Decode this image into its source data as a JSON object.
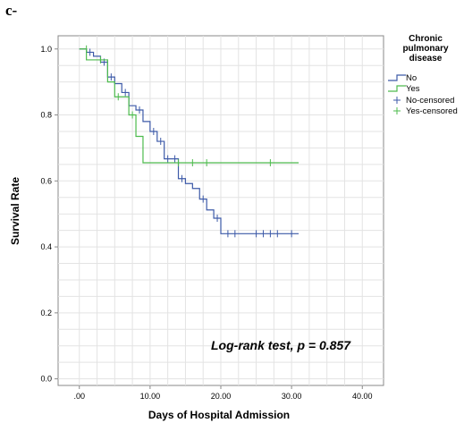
{
  "panel_label": "c-",
  "annotation": "Log-rank test, p = 0.857",
  "colors": {
    "no": "#3d5aa8",
    "yes": "#4dbb4d",
    "grid": "#e3e3e3",
    "axis": "#888888"
  },
  "chart_data": {
    "type": "line",
    "subtype": "kaplan-meier step",
    "xlabel": "Days of Hospital Admission",
    "ylabel": "Survival Rate",
    "xlim": [
      -3,
      43
    ],
    "ylim": [
      -0.02,
      1.04
    ],
    "x_ticks": [
      0,
      10,
      20,
      30,
      40
    ],
    "x_tick_labels": [
      ".00",
      "10.00",
      "20.00",
      "30.00",
      "40.00"
    ],
    "y_ticks": [
      0,
      0.2,
      0.4,
      0.6,
      0.8,
      1.0
    ],
    "y_tick_labels": [
      "0.0",
      "0.2",
      "0.4",
      "0.6",
      "0.8",
      "1.0"
    ],
    "grid": true,
    "legend": {
      "title_lines": [
        "Chronic",
        "pulmonary",
        "disease"
      ],
      "position": "right",
      "entries": [
        "No",
        "Yes",
        "No-censored",
        "Yes-censored"
      ]
    },
    "series": [
      {
        "name": "No",
        "steps": [
          [
            0,
            1.0
          ],
          [
            1,
            0.99
          ],
          [
            2,
            0.978
          ],
          [
            3,
            0.96
          ],
          [
            4,
            0.915
          ],
          [
            5,
            0.895
          ],
          [
            6,
            0.868
          ],
          [
            7,
            0.828
          ],
          [
            8,
            0.815
          ],
          [
            9,
            0.78
          ],
          [
            10,
            0.75
          ],
          [
            11,
            0.72
          ],
          [
            12,
            0.667
          ],
          [
            14,
            0.607
          ],
          [
            15,
            0.592
          ],
          [
            16,
            0.577
          ],
          [
            17,
            0.545
          ],
          [
            18,
            0.512
          ],
          [
            19,
            0.487
          ],
          [
            20,
            0.44
          ],
          [
            31,
            0.44
          ]
        ],
        "censored": [
          [
            1.5,
            0.99
          ],
          [
            3.5,
            0.96
          ],
          [
            4.5,
            0.915
          ],
          [
            6.5,
            0.868
          ],
          [
            8.5,
            0.815
          ],
          [
            10.5,
            0.75
          ],
          [
            11.5,
            0.72
          ],
          [
            12.5,
            0.667
          ],
          [
            13.5,
            0.667
          ],
          [
            14.5,
            0.607
          ],
          [
            17.5,
            0.545
          ],
          [
            19.5,
            0.487
          ],
          [
            21,
            0.44
          ],
          [
            22,
            0.44
          ],
          [
            25,
            0.44
          ],
          [
            26,
            0.44
          ],
          [
            27,
            0.44
          ],
          [
            28,
            0.44
          ],
          [
            30,
            0.44
          ]
        ]
      },
      {
        "name": "Yes",
        "steps": [
          [
            0,
            1.0
          ],
          [
            1,
            0.967
          ],
          [
            4,
            0.9
          ],
          [
            5,
            0.855
          ],
          [
            7,
            0.8
          ],
          [
            8,
            0.735
          ],
          [
            9,
            0.655
          ],
          [
            31,
            0.655
          ]
        ],
        "censored": [
          [
            1,
            1.0
          ],
          [
            3,
            0.967
          ],
          [
            5.5,
            0.855
          ],
          [
            7.5,
            0.8
          ],
          [
            14,
            0.655
          ],
          [
            16,
            0.655
          ],
          [
            18,
            0.655
          ],
          [
            27,
            0.655
          ]
        ]
      }
    ]
  }
}
